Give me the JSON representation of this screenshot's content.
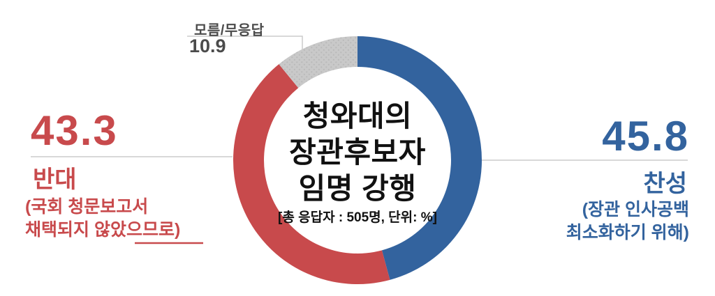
{
  "page": {
    "background": "#FFFFFF"
  },
  "chart_data": {
    "type": "pie",
    "variant": "donut",
    "title": "청와대의 장관후보자 임명 강행",
    "title_lines": [
      "청와대의",
      "장관후보자",
      "임명 강행"
    ],
    "subtitle": "[총 응답자 : 505명, 단위: %]",
    "total_respondents": 505,
    "unit": "%",
    "start_angle_deg": 0,
    "direction": "clockwise",
    "legend_position": "callouts",
    "leader_line_color": "#CBCBCB",
    "segments": [
      {
        "id": "favor",
        "label": "찬성",
        "value": 45.8,
        "color": "#33639E",
        "text_color": "#33639E",
        "note_lines": [
          "(장관 인사공백",
          "최소화하기 위해)"
        ]
      },
      {
        "id": "oppose",
        "label": "반대",
        "value": 43.3,
        "color": "#C84A4C",
        "text_color": "#C84A4C",
        "note_lines": [
          "(국회 청문보고서",
          "채택되지 않았으므로)"
        ]
      },
      {
        "id": "no-answer",
        "label": "모름/무응답",
        "value": 10.9,
        "color": "#C9C9C9",
        "dot_color": "#B9B9B9",
        "pattern": "dots",
        "text_color": "#4B4B4B"
      }
    ]
  }
}
